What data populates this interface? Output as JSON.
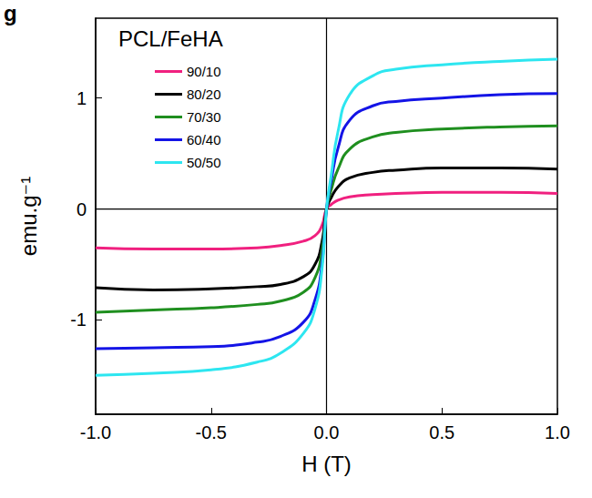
{
  "chart_data": {
    "type": "line",
    "title": "PCL/FeHA",
    "annotations": [
      "g"
    ],
    "x_label": "H (T)",
    "y_label": "emu.g⁻¹",
    "x": [
      -1,
      -0.75,
      -0.5,
      -0.3,
      -0.2,
      -0.1,
      -0.05,
      -0.02,
      0,
      0.02,
      0.05,
      0.1,
      0.2,
      0.3,
      0.5,
      0.75,
      1
    ],
    "series": [
      {
        "name": "90/10",
        "color": "#f0207f",
        "values": [
          -0.35,
          -0.36,
          -0.36,
          -0.35,
          -0.33,
          -0.29,
          -0.24,
          -0.15,
          0,
          0.04,
          0.08,
          0.11,
          0.13,
          0.14,
          0.15,
          0.15,
          0.14
        ]
      },
      {
        "name": "80/20",
        "color": "#000000",
        "values": [
          -0.71,
          -0.73,
          -0.72,
          -0.7,
          -0.68,
          -0.61,
          -0.5,
          -0.3,
          0,
          0.1,
          0.2,
          0.28,
          0.33,
          0.35,
          0.37,
          0.37,
          0.36
        ]
      },
      {
        "name": "70/30",
        "color": "#1f8f1f",
        "values": [
          -0.93,
          -0.91,
          -0.89,
          -0.86,
          -0.83,
          -0.75,
          -0.62,
          -0.38,
          0,
          0.17,
          0.36,
          0.54,
          0.65,
          0.69,
          0.72,
          0.74,
          0.75
        ]
      },
      {
        "name": "60/40",
        "color": "#1414e6",
        "values": [
          -1.26,
          -1.25,
          -1.24,
          -1.2,
          -1.15,
          -1.02,
          -0.82,
          -0.5,
          0,
          0.25,
          0.55,
          0.8,
          0.93,
          0.97,
          1.0,
          1.03,
          1.04
        ]
      },
      {
        "name": "50/50",
        "color": "#2de6f0",
        "values": [
          -1.5,
          -1.48,
          -1.45,
          -1.38,
          -1.3,
          -1.12,
          -0.9,
          -0.55,
          0,
          0.3,
          0.7,
          1.03,
          1.2,
          1.26,
          1.3,
          1.33,
          1.35
        ]
      }
    ],
    "xlim": [
      -1,
      1
    ],
    "xticks": [
      {
        "value": -1,
        "label": "-1.0"
      },
      {
        "value": -0.5,
        "label": "-0.5"
      },
      {
        "value": 0,
        "label": "0.0"
      },
      {
        "value": 0.5,
        "label": "0.5"
      },
      {
        "value": 1,
        "label": "1.0"
      }
    ],
    "ylim": [
      -1.85,
      1.72
    ],
    "yticks": [
      -1,
      0,
      1
    ],
    "grid": false,
    "legend": "upper left"
  }
}
